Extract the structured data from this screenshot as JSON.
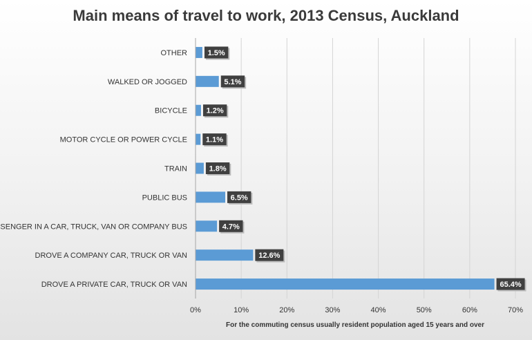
{
  "chart_data": {
    "type": "bar",
    "orientation": "horizontal",
    "title": "Main means of travel to work, 2013 Census, Auckland",
    "xlabel": "For the commuting  census usually resident population  aged 15 years and over",
    "ylabel": "",
    "categories": [
      "OTHER",
      "WALKED OR JOGGED",
      "BICYCLE",
      "MOTOR CYCLE OR POWER CYCLE",
      "TRAIN",
      "PUBLIC BUS",
      "PASSENGER IN A CAR, TRUCK, VAN OR COMPANY BUS",
      "DROVE A COMPANY CAR, TRUCK OR VAN",
      "DROVE A PRIVATE CAR, TRUCK OR VAN"
    ],
    "values": [
      1.5,
      5.1,
      1.2,
      1.1,
      1.8,
      6.5,
      4.7,
      12.6,
      65.4
    ],
    "data_labels": [
      "1.5%",
      "5.1%",
      "1.2%",
      "1.1%",
      "1.8%",
      "6.5%",
      "4.7%",
      "12.6%",
      "65.4%"
    ],
    "xlim": [
      0,
      70
    ],
    "xticks": [
      "0%",
      "10%",
      "20%",
      "30%",
      "40%",
      "50%",
      "60%",
      "70%"
    ],
    "grid": true,
    "legend": "none",
    "colors": {
      "bar": "#5b9bd5",
      "label_bg": "#404040",
      "grid": "#d4d4d4",
      "axis": "#a6a6a6"
    }
  }
}
